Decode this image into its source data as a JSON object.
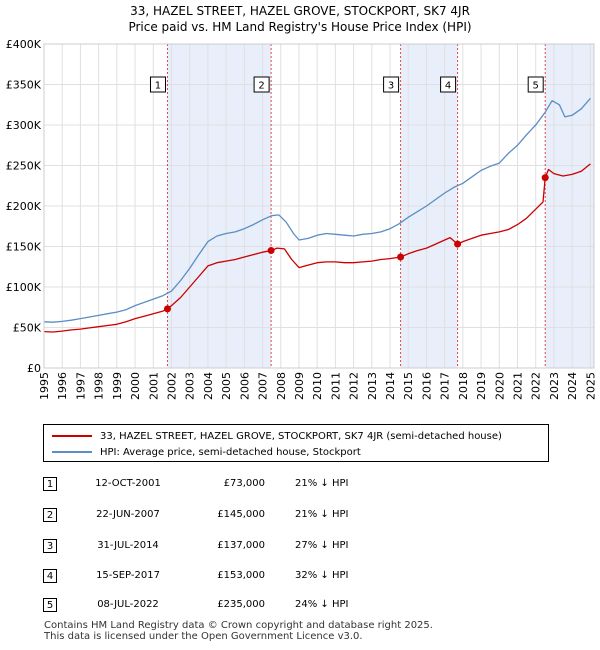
{
  "title_line1": "33, HAZEL STREET, HAZEL GROVE, STOCKPORT, SK7 4JR",
  "title_line2": "Price paid vs. HM Land Registry's House Price Index (HPI)",
  "chart_data": {
    "type": "line",
    "title": "33, HAZEL STREET, HAZEL GROVE, STOCKPORT, SK7 4JR — Price paid vs. HM Land Registry's House Price Index (HPI)",
    "xlabel": "",
    "ylabel": "",
    "xlim": [
      1995,
      2025.2
    ],
    "ylim": [
      0,
      400000
    ],
    "y_ticks": [
      0,
      50000,
      100000,
      150000,
      200000,
      250000,
      300000,
      350000,
      400000
    ],
    "y_tick_labels": [
      "£0",
      "£50K",
      "£100K",
      "£150K",
      "£200K",
      "£250K",
      "£300K",
      "£350K",
      "£400K"
    ],
    "x_ticks": [
      1995,
      1996,
      1997,
      1998,
      1999,
      2000,
      2001,
      2002,
      2003,
      2004,
      2005,
      2006,
      2007,
      2008,
      2009,
      2010,
      2011,
      2012,
      2013,
      2014,
      2015,
      2016,
      2017,
      2018,
      2019,
      2020,
      2021,
      2022,
      2023,
      2024,
      2025
    ],
    "x_tick_labels": [
      "1995",
      "1996",
      "1997",
      "1998",
      "1999",
      "2000",
      "2001",
      "2002",
      "2003",
      "2004",
      "2005",
      "2006",
      "2007",
      "2008",
      "2009",
      "2010",
      "2011",
      "2012",
      "2013",
      "2014",
      "2015",
      "2016",
      "2017",
      "2018",
      "2019",
      "2020",
      "2021",
      "2022",
      "2023",
      "2024",
      "2025"
    ],
    "grid": true,
    "legend_position": "below",
    "series": [
      {
        "name": "33, HAZEL STREET, HAZEL GROVE, STOCKPORT, SK7 4JR (semi-detached house)",
        "color": "#cc0000",
        "x": [
          1995.0,
          1995.5,
          1996.0,
          1996.5,
          1997.0,
          1997.5,
          1998.0,
          1998.5,
          1999.0,
          1999.5,
          2000.0,
          2000.5,
          2001.0,
          2001.5,
          2001.78,
          2002.0,
          2002.5,
          2003.0,
          2003.5,
          2004.0,
          2004.5,
          2005.0,
          2005.5,
          2006.0,
          2006.5,
          2007.0,
          2007.47,
          2007.8,
          2008.2,
          2008.6,
          2009.0,
          2009.5,
          2010.0,
          2010.5,
          2011.0,
          2011.5,
          2012.0,
          2012.5,
          2013.0,
          2013.5,
          2014.0,
          2014.58,
          2015.0,
          2015.5,
          2016.0,
          2016.5,
          2017.0,
          2017.3,
          2017.71,
          2018.0,
          2018.5,
          2019.0,
          2019.5,
          2020.0,
          2020.5,
          2021.0,
          2021.5,
          2022.0,
          2022.4,
          2022.52,
          2022.7,
          2023.0,
          2023.5,
          2024.0,
          2024.5,
          2025.0
        ],
        "y": [
          45000,
          44500,
          45500,
          47000,
          48000,
          49500,
          51000,
          52500,
          54000,
          57000,
          61000,
          64000,
          67000,
          70000,
          73000,
          77000,
          87000,
          100000,
          113000,
          126000,
          130000,
          132000,
          134000,
          137000,
          140000,
          143000,
          145000,
          148000,
          147000,
          134000,
          124000,
          127000,
          130000,
          131000,
          131000,
          130000,
          130000,
          131000,
          132000,
          134000,
          135000,
          137000,
          141000,
          145000,
          148000,
          153000,
          158000,
          161000,
          153000,
          156000,
          160000,
          164000,
          166000,
          168000,
          171000,
          177000,
          185000,
          196000,
          205000,
          235000,
          245000,
          240000,
          237000,
          239000,
          243000,
          252000
        ]
      },
      {
        "name": "HPI: Average price, semi-detached house, Stockport",
        "color": "#5b8ec4",
        "x": [
          1995.0,
          1995.5,
          1996.0,
          1996.5,
          1997.0,
          1997.5,
          1998.0,
          1998.5,
          1999.0,
          1999.5,
          2000.0,
          2000.5,
          2001.0,
          2001.5,
          2002.0,
          2002.5,
          2003.0,
          2003.5,
          2004.0,
          2004.5,
          2005.0,
          2005.5,
          2006.0,
          2006.5,
          2007.0,
          2007.5,
          2007.9,
          2008.3,
          2008.7,
          2009.0,
          2009.5,
          2010.0,
          2010.5,
          2011.0,
          2011.5,
          2012.0,
          2012.5,
          2013.0,
          2013.5,
          2014.0,
          2014.5,
          2015.0,
          2015.5,
          2016.0,
          2016.5,
          2017.0,
          2017.5,
          2018.0,
          2018.5,
          2019.0,
          2019.5,
          2020.0,
          2020.5,
          2021.0,
          2021.5,
          2022.0,
          2022.5,
          2022.9,
          2023.3,
          2023.6,
          2024.0,
          2024.5,
          2025.0
        ],
        "y": [
          57000,
          56500,
          57500,
          59000,
          61000,
          63000,
          65000,
          67000,
          69000,
          72000,
          77000,
          81000,
          85000,
          89000,
          95000,
          108000,
          123000,
          140000,
          156000,
          163000,
          166000,
          168000,
          172000,
          177000,
          183000,
          188000,
          189000,
          180000,
          166000,
          158000,
          160000,
          164000,
          166000,
          165000,
          164000,
          163000,
          165000,
          166000,
          168000,
          172000,
          178000,
          186000,
          193000,
          200000,
          208000,
          216000,
          223000,
          228000,
          236000,
          244000,
          249000,
          253000,
          265000,
          275000,
          288000,
          300000,
          315000,
          330000,
          325000,
          310000,
          312000,
          320000,
          333000
        ]
      }
    ],
    "sale_markers": [
      {
        "label": "1",
        "x": 2001.78,
        "y": 73000
      },
      {
        "label": "2",
        "x": 2007.47,
        "y": 145000
      },
      {
        "label": "3",
        "x": 2014.58,
        "y": 137000
      },
      {
        "label": "4",
        "x": 2017.71,
        "y": 153000
      },
      {
        "label": "5",
        "x": 2022.52,
        "y": 235000
      }
    ],
    "shaded_ranges": [
      [
        2001.78,
        2007.47
      ],
      [
        2014.58,
        2017.71
      ],
      [
        2022.52,
        2025.2
      ]
    ],
    "colors": {
      "grid": "#e0e0e0",
      "shade": "#e8eefa",
      "vline": "#cc0000",
      "marker": "#cc0000"
    }
  },
  "legend": [
    {
      "label": "33, HAZEL STREET, HAZEL GROVE, STOCKPORT, SK7 4JR (semi-detached house)",
      "color": "#cc0000"
    },
    {
      "label": "HPI: Average price, semi-detached house, Stockport",
      "color": "#5b8ec4"
    }
  ],
  "transactions": [
    {
      "num": "1",
      "date": "12-OCT-2001",
      "price": "£73,000",
      "hpi": "21% ↓ HPI"
    },
    {
      "num": "2",
      "date": "22-JUN-2007",
      "price": "£145,000",
      "hpi": "21% ↓ HPI"
    },
    {
      "num": "3",
      "date": "31-JUL-2014",
      "price": "£137,000",
      "hpi": "27% ↓ HPI"
    },
    {
      "num": "4",
      "date": "15-SEP-2017",
      "price": "£153,000",
      "hpi": "32% ↓ HPI"
    },
    {
      "num": "5",
      "date": "08-JUL-2022",
      "price": "£235,000",
      "hpi": "24% ↓ HPI"
    }
  ],
  "footer": {
    "line1": "Contains HM Land Registry data © Crown copyright and database right 2025.",
    "line2": "This data is licensed under the Open Government Licence v3.0."
  }
}
